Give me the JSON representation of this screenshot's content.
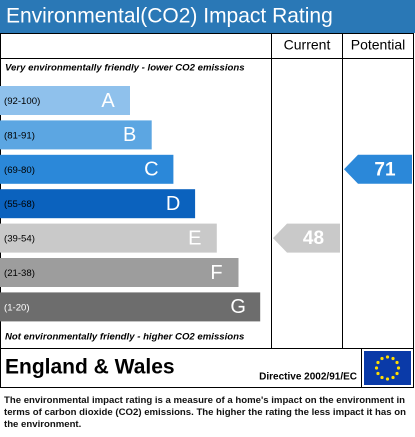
{
  "header": {
    "title": "Environmental(CO2) Impact Rating"
  },
  "columns": {
    "current": "Current",
    "potential": "Potential"
  },
  "top_note": "Very environmentally friendly - lower CO2 emissions",
  "bands": [
    {
      "range": "(92-100)",
      "letter": "A",
      "color": "#8fc1ec"
    },
    {
      "range": "(81-91)",
      "letter": "B",
      "color": "#5ca6e2"
    },
    {
      "range": "(69-80)",
      "letter": "C",
      "color": "#2b88d9"
    },
    {
      "range": "(55-68)",
      "letter": "D",
      "color": "#0b62be"
    },
    {
      "range": "(39-54)",
      "letter": "E",
      "color": "#c9c9c9"
    },
    {
      "range": "(21-38)",
      "letter": "F",
      "color": "#9d9d9d"
    },
    {
      "range": "(1-20)",
      "letter": "G",
      "color": "#6d6d6d"
    }
  ],
  "bottom_note": "Not environmentally friendly - higher CO2 emissions",
  "current": {
    "value": 48
  },
  "potential": {
    "value": 71
  },
  "footer": {
    "region": "England & Wales",
    "directive": "Directive 2002/91/EC"
  },
  "description": "The environmental impact rating is a measure of a home's impact on the environment in terms of carbon dioxide (CO2) emissions. The higher the rating the less impact it has on the environment."
}
